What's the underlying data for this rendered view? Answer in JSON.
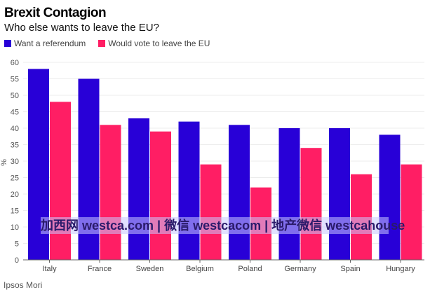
{
  "chart_data": {
    "type": "bar",
    "title": "Brexit Contagion",
    "subtitle": "Who else wants to leave the EU?",
    "ylabel": "%",
    "ylim": [
      0,
      60
    ],
    "yticks": [
      0,
      5,
      10,
      15,
      20,
      25,
      30,
      35,
      40,
      45,
      50,
      55,
      60
    ],
    "grid": true,
    "legend": "top-left",
    "categories": [
      "Italy",
      "France",
      "Sweden",
      "Belgium",
      "Poland",
      "Germany",
      "Spain",
      "Hungary"
    ],
    "series": [
      {
        "name": "Want a referendum",
        "color": "#2800d7",
        "values": [
          58,
          55,
          43,
          42,
          41,
          40,
          40,
          38
        ]
      },
      {
        "name": "Would vote to leave the EU",
        "color": "#ff1e64",
        "values": [
          48,
          41,
          39,
          29,
          22,
          34,
          26,
          29
        ]
      }
    ]
  },
  "source": "Ipsos Mori",
  "watermark": "加西网 westca.com | 微信 westcacom | 地产微信 westcahouse"
}
